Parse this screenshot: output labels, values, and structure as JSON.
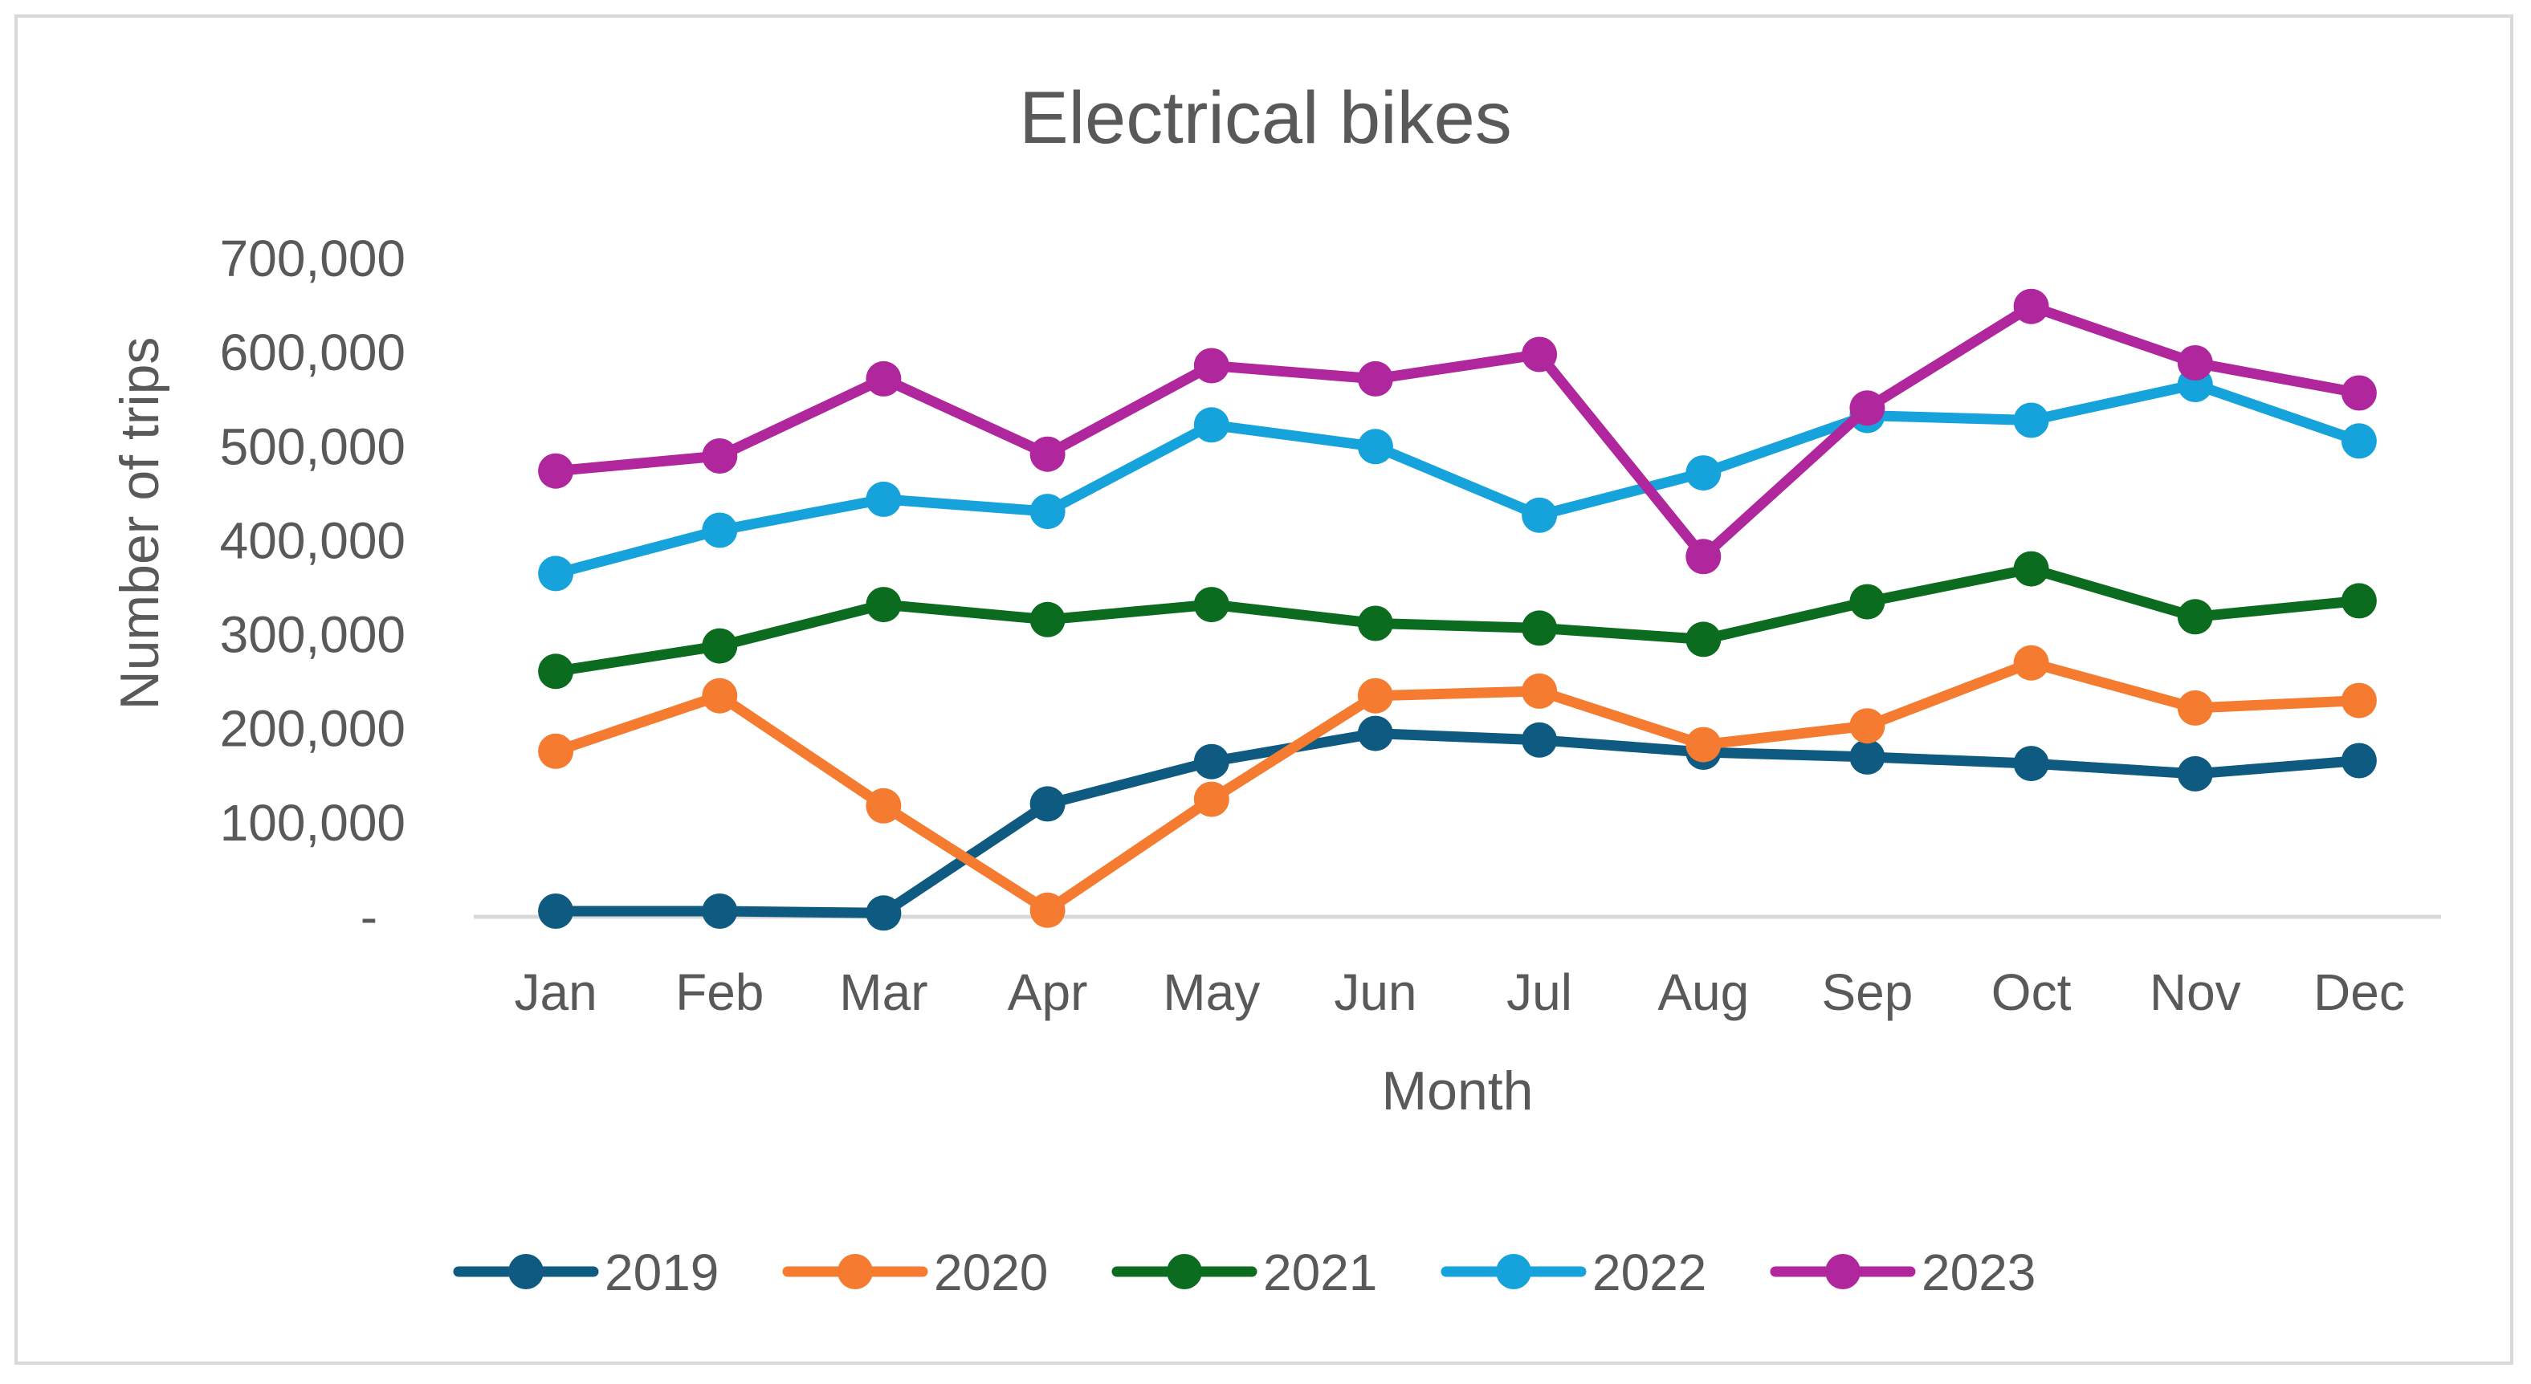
{
  "chart_data": {
    "type": "line",
    "title": "Electrical bikes",
    "xlabel": "Month",
    "ylabel": "Number of trips",
    "categories": [
      "Jan",
      "Feb",
      "Mar",
      "Apr",
      "May",
      "Jun",
      "Jul",
      "Aug",
      "Sep",
      "Oct",
      "Nov",
      "Dec"
    ],
    "ylim": [
      0,
      700000
    ],
    "yticks": [
      0,
      100000,
      200000,
      300000,
      400000,
      500000,
      600000,
      700000
    ],
    "ytick_labels": [
      "-",
      "100,000",
      "200,000",
      "300,000",
      "400,000",
      "500,000",
      "600,000",
      "700,000"
    ],
    "grid": false,
    "legend_position": "bottom",
    "series": [
      {
        "name": "2019",
        "color": "#0f5a80",
        "values": [
          6000,
          6000,
          4000,
          120000,
          165000,
          195000,
          188000,
          175000,
          170000,
          163000,
          152000,
          166000
        ]
      },
      {
        "name": "2020",
        "color": "#f47b30",
        "values": [
          176000,
          235000,
          118000,
          7000,
          125000,
          235000,
          240000,
          183000,
          203000,
          270000,
          222000,
          230000
        ]
      },
      {
        "name": "2021",
        "color": "#0b6b1f",
        "values": [
          261000,
          288000,
          332000,
          316000,
          332000,
          312000,
          307000,
          295000,
          335000,
          370000,
          319000,
          336000
        ]
      },
      {
        "name": "2022",
        "color": "#16a3db",
        "values": [
          365000,
          411000,
          444000,
          431000,
          523000,
          500000,
          427000,
          472000,
          533000,
          528000,
          566000,
          506000
        ]
      },
      {
        "name": "2023",
        "color": "#b0269d",
        "values": [
          474000,
          490000,
          572000,
          492000,
          586000,
          572000,
          598000,
          383000,
          541000,
          649000,
          589000,
          557000
        ]
      }
    ]
  }
}
